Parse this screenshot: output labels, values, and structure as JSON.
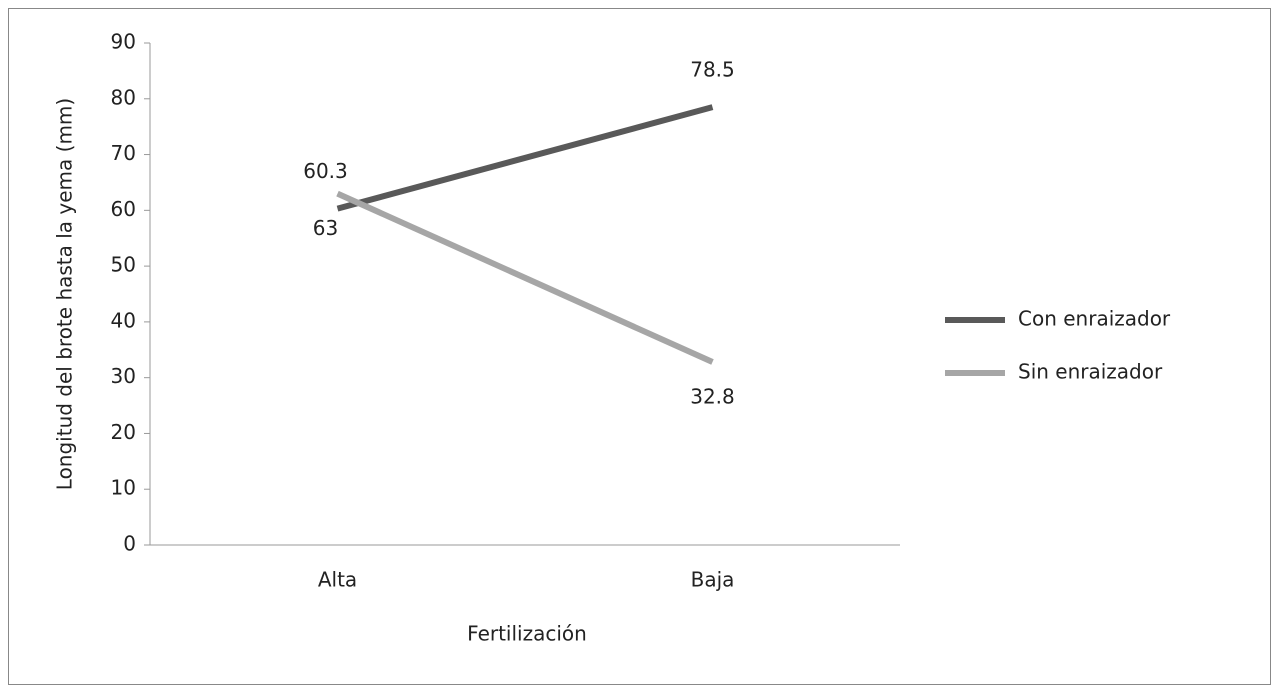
{
  "chart_data": {
    "type": "line",
    "x_label": "Fertilización",
    "y_label": "Longitud del brote hasta la yema (mm)",
    "categories": [
      "Alta",
      "Baja"
    ],
    "series": [
      {
        "name": "Con enraizador",
        "color": "#595959",
        "values": [
          60.3,
          78.5
        ]
      },
      {
        "name": "Sin enraizador",
        "color": "#a6a6a6",
        "values": [
          63,
          32.8
        ]
      }
    ],
    "ylim": [
      0,
      90
    ],
    "yticks": [
      0,
      10,
      20,
      30,
      40,
      50,
      60,
      70,
      80,
      90
    ],
    "legend": "right",
    "grid": false
  }
}
